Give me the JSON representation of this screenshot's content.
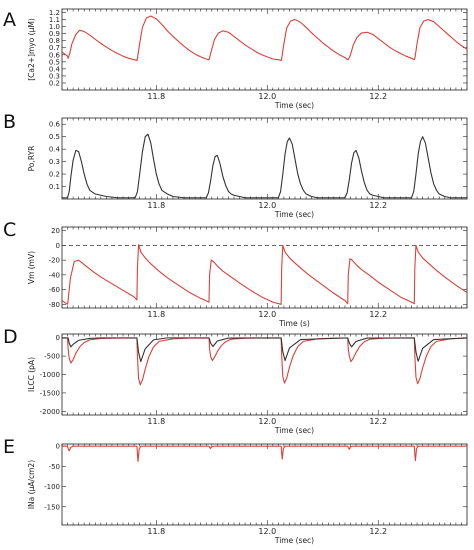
{
  "chart_data": [
    {
      "type": "line",
      "panel_label": "A",
      "ylabel": "[Ca2+]myo (μM)",
      "xlabel": "Time (sec)",
      "xlim": [
        11.63,
        12.36
      ],
      "ylim": [
        0.1,
        1.25
      ],
      "yticks": [
        "0.2",
        "0.3",
        "0.4",
        "0.5",
        "0.6",
        "0.7",
        "0.8",
        "0.9",
        "1.0",
        "1.1",
        "1.2"
      ],
      "xticks": [
        "11.8",
        "12.0",
        "12.2"
      ],
      "series": [
        {
          "color": "#d9413b",
          "x": [
            11.63,
            11.64,
            11.641,
            11.644,
            11.648,
            11.655,
            11.662,
            11.67,
            11.68,
            11.69,
            11.7,
            11.71,
            11.72,
            11.73,
            11.74,
            11.75,
            11.76,
            11.765,
            11.766,
            11.77,
            11.775,
            11.782,
            11.79,
            11.8,
            11.81,
            11.82,
            11.83,
            11.84,
            11.85,
            11.86,
            11.87,
            11.88,
            11.89,
            11.895,
            11.896,
            11.9,
            11.905,
            11.912,
            11.92,
            11.93,
            11.94,
            11.95,
            11.96,
            11.97,
            11.98,
            11.99,
            12.0,
            12.01,
            12.02,
            12.025,
            12.026,
            12.03,
            12.035,
            12.042,
            12.05,
            12.06,
            12.07,
            12.08,
            12.09,
            12.1,
            12.11,
            12.12,
            12.13,
            12.14,
            12.145,
            12.146,
            12.15,
            12.155,
            12.162,
            12.17,
            12.18,
            12.19,
            12.2,
            12.21,
            12.22,
            12.23,
            12.24,
            12.25,
            12.26,
            12.265,
            12.266,
            12.27,
            12.275,
            12.282,
            12.29,
            12.3,
            12.31,
            12.32,
            12.33,
            12.34,
            12.35,
            12.36
          ],
          "y": [
            0.64,
            0.58,
            0.55,
            0.62,
            0.76,
            0.89,
            0.95,
            0.93,
            0.88,
            0.82,
            0.76,
            0.71,
            0.66,
            0.62,
            0.58,
            0.55,
            0.53,
            0.52,
            0.55,
            0.76,
            0.99,
            1.12,
            1.15,
            1.11,
            1.03,
            0.94,
            0.86,
            0.79,
            0.72,
            0.66,
            0.61,
            0.57,
            0.54,
            0.53,
            0.56,
            0.68,
            0.82,
            0.91,
            0.94,
            0.92,
            0.86,
            0.8,
            0.74,
            0.69,
            0.64,
            0.6,
            0.57,
            0.54,
            0.53,
            0.52,
            0.55,
            0.76,
            0.98,
            1.08,
            1.1,
            1.06,
            0.99,
            0.91,
            0.84,
            0.77,
            0.71,
            0.65,
            0.6,
            0.56,
            0.53,
            0.53,
            0.6,
            0.74,
            0.85,
            0.91,
            0.92,
            0.89,
            0.83,
            0.77,
            0.71,
            0.66,
            0.62,
            0.58,
            0.55,
            0.53,
            0.55,
            0.76,
            0.98,
            1.08,
            1.1,
            1.07,
            1.0,
            0.93,
            0.86,
            0.79,
            0.73,
            0.68
          ]
        }
      ]
    },
    {
      "type": "line",
      "panel_label": "B",
      "ylabel": "Po,RYR",
      "xlabel": "Time (sec)",
      "xlim": [
        11.63,
        12.36
      ],
      "ylim": [
        0,
        0.65
      ],
      "yticks": [
        "0.1",
        "0.2",
        "0.3",
        "0.4",
        "0.5",
        "0.6"
      ],
      "xticks": [
        "11.8",
        "12.0",
        "12.2"
      ],
      "series": [
        {
          "color": "#333333",
          "x": [
            11.63,
            11.635,
            11.64,
            11.643,
            11.646,
            11.65,
            11.655,
            11.66,
            11.665,
            11.67,
            11.675,
            11.68,
            11.69,
            11.7,
            11.71,
            11.73,
            11.75,
            11.762,
            11.766,
            11.77,
            11.775,
            11.78,
            11.785,
            11.79,
            11.795,
            11.8,
            11.805,
            11.81,
            11.82,
            11.83,
            11.85,
            11.87,
            11.89,
            11.894,
            11.898,
            11.902,
            11.906,
            11.91,
            11.915,
            11.92,
            11.925,
            11.93,
            11.935,
            11.94,
            11.95,
            11.96,
            11.98,
            12.0,
            12.02,
            12.024,
            12.028,
            12.032,
            12.036,
            12.04,
            12.045,
            12.05,
            12.055,
            12.06,
            12.065,
            12.07,
            12.08,
            12.09,
            12.11,
            12.13,
            12.14,
            12.144,
            12.148,
            12.152,
            12.156,
            12.16,
            12.165,
            12.17,
            12.175,
            12.18,
            12.185,
            12.19,
            12.2,
            12.21,
            12.23,
            12.25,
            12.26,
            12.264,
            12.268,
            12.272,
            12.276,
            12.28,
            12.285,
            12.29,
            12.295,
            12.3,
            12.305,
            12.31,
            12.32,
            12.33,
            12.345,
            12.36
          ],
          "y": [
            0.01,
            0.01,
            0.01,
            0.06,
            0.18,
            0.31,
            0.39,
            0.38,
            0.3,
            0.2,
            0.12,
            0.07,
            0.04,
            0.03,
            0.02,
            0.01,
            0.01,
            0.01,
            0.06,
            0.2,
            0.38,
            0.5,
            0.52,
            0.45,
            0.32,
            0.2,
            0.12,
            0.07,
            0.04,
            0.02,
            0.01,
            0.01,
            0.01,
            0.05,
            0.15,
            0.27,
            0.34,
            0.35,
            0.28,
            0.18,
            0.11,
            0.06,
            0.04,
            0.03,
            0.02,
            0.01,
            0.01,
            0.01,
            0.01,
            0.06,
            0.2,
            0.36,
            0.46,
            0.49,
            0.44,
            0.32,
            0.2,
            0.12,
            0.07,
            0.04,
            0.02,
            0.01,
            0.01,
            0.01,
            0.01,
            0.05,
            0.16,
            0.29,
            0.37,
            0.39,
            0.33,
            0.22,
            0.13,
            0.07,
            0.04,
            0.03,
            0.02,
            0.01,
            0.01,
            0.01,
            0.01,
            0.06,
            0.2,
            0.36,
            0.46,
            0.5,
            0.45,
            0.33,
            0.21,
            0.12,
            0.07,
            0.04,
            0.02,
            0.01,
            0.01,
            0.01
          ]
        }
      ]
    },
    {
      "type": "line",
      "panel_label": "C",
      "ylabel": "Vm (mV)",
      "xlabel": "Time (s)",
      "xlim": [
        11.63,
        12.36
      ],
      "ylim": [
        -85,
        25
      ],
      "yticks": [
        "-80",
        "-60",
        "-40",
        "-20",
        "0",
        "20"
      ],
      "xticks": [
        "11.8",
        "12.0",
        "12.2"
      ],
      "reference_line": 0,
      "series": [
        {
          "color": "#d9413b",
          "x": [
            11.63,
            11.64,
            11.641,
            11.645,
            11.652,
            11.66,
            11.67,
            11.685,
            11.7,
            11.72,
            11.74,
            11.76,
            11.765,
            11.766,
            11.768,
            11.772,
            11.78,
            11.79,
            11.805,
            11.82,
            11.84,
            11.86,
            11.88,
            11.895,
            11.896,
            11.899,
            11.903,
            11.91,
            11.92,
            11.935,
            11.95,
            11.97,
            11.99,
            12.01,
            12.025,
            12.026,
            12.028,
            12.032,
            12.04,
            12.05,
            12.065,
            12.08,
            12.1,
            12.12,
            12.14,
            12.145,
            12.146,
            12.149,
            12.153,
            12.16,
            12.17,
            12.185,
            12.2,
            12.22,
            12.24,
            12.26,
            12.265,
            12.266,
            12.268,
            12.272,
            12.28,
            12.29,
            12.305,
            12.32,
            12.34,
            12.36
          ],
          "y": [
            -75,
            -80,
            -75,
            -45,
            -22,
            -20,
            -26,
            -35,
            -43,
            -52,
            -61,
            -70,
            -74,
            -30,
            1,
            -9,
            -17,
            -25,
            -35,
            -44,
            -54,
            -64,
            -72,
            -77,
            -40,
            -20,
            -22,
            -28,
            -35,
            -43,
            -51,
            -61,
            -70,
            -77,
            -80,
            -30,
            0,
            -9,
            -17,
            -24,
            -34,
            -43,
            -54,
            -65,
            -75,
            -79,
            -40,
            -18,
            -20,
            -26,
            -33,
            -41,
            -50,
            -60,
            -70,
            -77,
            -79,
            -30,
            0,
            -9,
            -17,
            -24,
            -34,
            -43,
            -54,
            -64
          ]
        }
      ]
    },
    {
      "type": "line",
      "panel_label": "D",
      "ylabel": "ILCC (pA)",
      "xlabel": "Time (sec)",
      "xlim": [
        11.63,
        12.36
      ],
      "ylim": [
        -2100,
        100
      ],
      "yticks": [
        "-2000",
        "-1500",
        "-1000",
        "-500",
        "0"
      ],
      "xticks": [
        "11.8",
        "12.0",
        "12.2"
      ],
      "series": [
        {
          "color": "#d9413b",
          "x": [
            11.63,
            11.64,
            11.641,
            11.643,
            11.646,
            11.65,
            11.655,
            11.662,
            11.67,
            11.68,
            11.7,
            11.73,
            11.765,
            11.766,
            11.768,
            11.771,
            11.775,
            11.78,
            11.787,
            11.795,
            11.805,
            11.83,
            11.86,
            11.895,
            11.896,
            11.898,
            11.901,
            11.905,
            11.91,
            11.917,
            11.925,
            11.935,
            11.96,
            11.99,
            12.025,
            12.026,
            12.028,
            12.031,
            12.035,
            12.04,
            12.047,
            12.055,
            12.065,
            12.09,
            12.12,
            12.145,
            12.146,
            12.148,
            12.151,
            12.155,
            12.16,
            12.167,
            12.175,
            12.185,
            12.21,
            12.24,
            12.265,
            12.266,
            12.268,
            12.271,
            12.275,
            12.28,
            12.287,
            12.295,
            12.305,
            12.33,
            12.36
          ],
          "y": [
            -10,
            -10,
            -300,
            -560,
            -690,
            -600,
            -420,
            -250,
            -130,
            -60,
            -20,
            -10,
            -10,
            -500,
            -1100,
            -1280,
            -1150,
            -850,
            -500,
            -250,
            -100,
            -30,
            -10,
            -10,
            -300,
            -520,
            -620,
            -530,
            -380,
            -220,
            -110,
            -40,
            -15,
            -10,
            -10,
            -500,
            -1050,
            -1230,
            -1100,
            -800,
            -480,
            -240,
            -100,
            -30,
            -10,
            -10,
            -300,
            -520,
            -650,
            -560,
            -400,
            -230,
            -110,
            -40,
            -15,
            -10,
            -10,
            -500,
            -1070,
            -1250,
            -1120,
            -820,
            -490,
            -240,
            -100,
            -30,
            -10
          ]
        },
        {
          "color": "#333333",
          "x": [
            11.63,
            11.641,
            11.643,
            11.646,
            11.65,
            11.66,
            11.68,
            11.7,
            11.765,
            11.768,
            11.772,
            11.78,
            11.795,
            11.82,
            11.895,
            11.898,
            11.902,
            11.91,
            11.93,
            12.025,
            12.028,
            12.032,
            12.04,
            12.06,
            12.145,
            12.148,
            12.152,
            12.16,
            12.18,
            12.265,
            12.268,
            12.272,
            12.28,
            12.3,
            12.36
          ],
          "y": [
            -5,
            -5,
            -150,
            -250,
            -180,
            -70,
            -20,
            -5,
            -5,
            -400,
            -650,
            -300,
            -60,
            -5,
            -5,
            -150,
            -240,
            -90,
            -10,
            -5,
            -380,
            -620,
            -280,
            -50,
            -5,
            -150,
            -250,
            -100,
            -10,
            -5,
            -390,
            -640,
            -290,
            -50,
            -5
          ]
        }
      ]
    },
    {
      "type": "line",
      "panel_label": "E",
      "ylabel": "INa (μA/cm2)",
      "xlabel": "Time (sec)",
      "xlim": [
        11.63,
        12.36
      ],
      "ylim": [
        -195,
        5
      ],
      "yticks": [
        "-150",
        "-100",
        "-50",
        "0"
      ],
      "xticks": [
        "11.8",
        "12.0",
        "12.2"
      ],
      "series": [
        {
          "color": "#d9413b",
          "x": [
            11.63,
            11.64,
            11.641,
            11.643,
            11.646,
            11.65,
            11.765,
            11.766,
            11.767,
            11.769,
            11.772,
            11.895,
            11.896,
            11.898,
            11.9,
            11.903,
            12.025,
            12.026,
            12.027,
            12.029,
            12.032,
            12.145,
            12.146,
            12.148,
            12.15,
            12.153,
            12.265,
            12.266,
            12.267,
            12.269,
            12.272,
            12.36
          ],
          "y": [
            -0.5,
            -0.5,
            -6,
            -12,
            -3,
            -0.5,
            -0.5,
            -20,
            -38,
            -8,
            -0.5,
            -0.5,
            -3,
            -6,
            -2,
            -0.5,
            -0.5,
            -18,
            -32,
            -6,
            -0.5,
            -0.5,
            -4,
            -8,
            -2,
            -0.5,
            -0.5,
            -20,
            -36,
            -7,
            -0.5,
            -0.5
          ]
        }
      ]
    }
  ]
}
